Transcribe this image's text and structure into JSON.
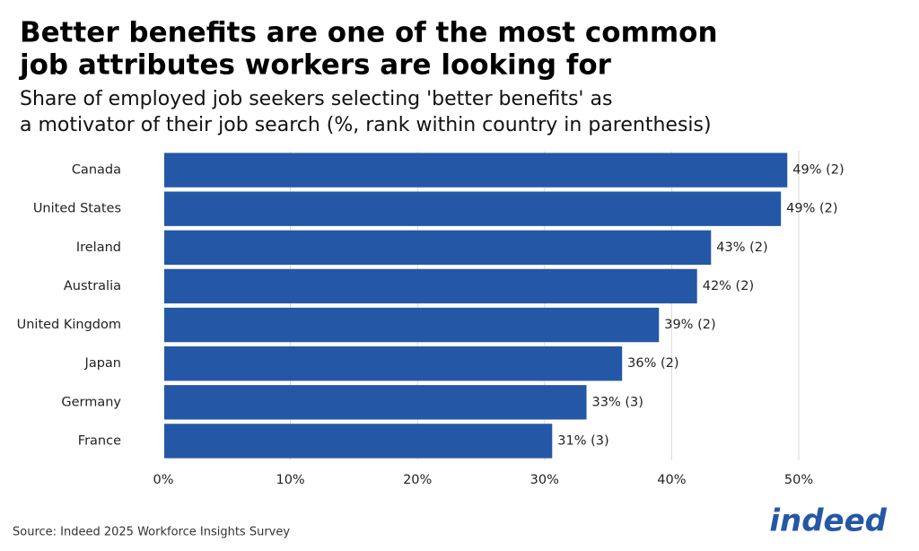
{
  "chart_data": {
    "type": "bar",
    "orientation": "horizontal",
    "title": [
      "Better benefits are one of the most common",
      "job attributes workers are looking for"
    ],
    "subtitle": [
      "Share of employed job seekers selecting 'better benefits' as",
      "a motivator of their job search (%, rank within country in parenthesis)"
    ],
    "categories": [
      "Canada",
      "United States",
      "Ireland",
      "Australia",
      "United Kingdom",
      "Japan",
      "Germany",
      "France"
    ],
    "values": [
      49.1,
      48.6,
      43.1,
      42.0,
      39.0,
      36.1,
      33.3,
      30.6
    ],
    "value_labels": [
      "49% (2)",
      "49% (2)",
      "43% (2)",
      "42% (2)",
      "39% (2)",
      "36% (2)",
      "33% (3)",
      "31% (3)"
    ],
    "color": "#2557a7",
    "xlim": [
      0,
      50
    ],
    "xticks": [
      {
        "value": 0,
        "label": "0%"
      },
      {
        "value": 10,
        "label": "10%"
      },
      {
        "value": 20,
        "label": "20%"
      },
      {
        "value": 30,
        "label": "30%"
      },
      {
        "value": 40,
        "label": "40%"
      },
      {
        "value": 50,
        "label": "50%"
      }
    ],
    "grid": true,
    "source": "Source: Indeed 2025 Workforce Insights Survey",
    "logo": "indeed"
  }
}
